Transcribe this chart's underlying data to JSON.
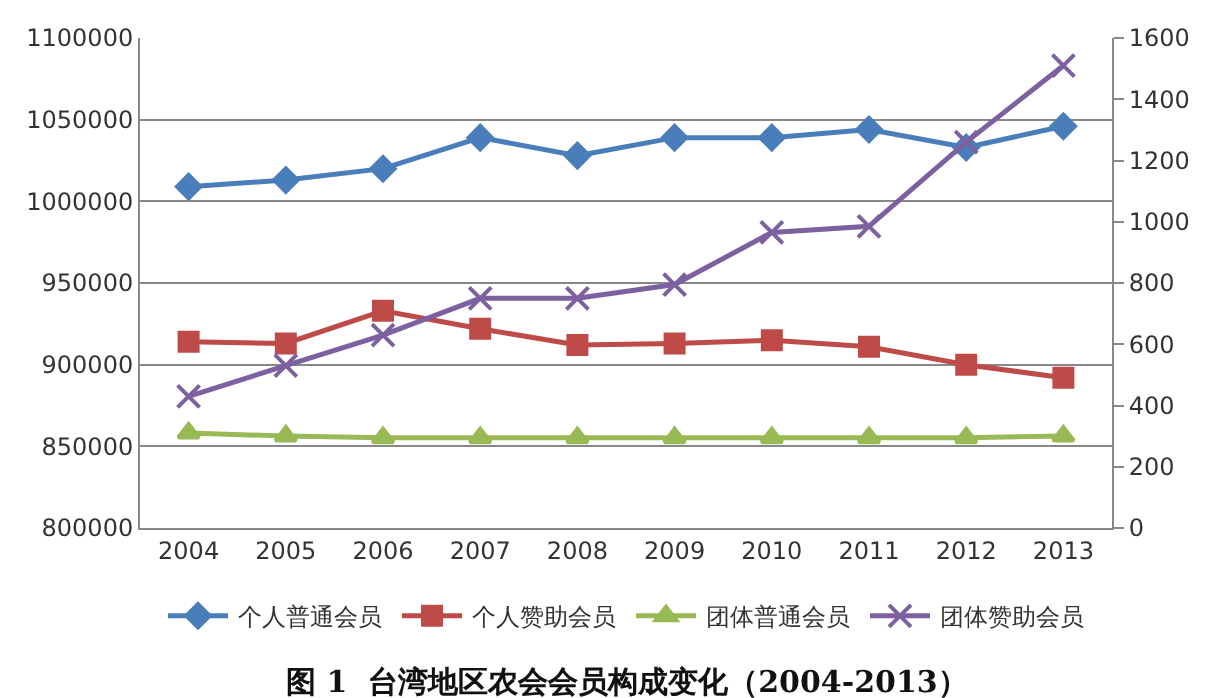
{
  "chart_data": {
    "type": "line",
    "title": "图 1  台湾地区农会会员构成变化（2004-2013）",
    "categories": [
      "2004",
      "2005",
      "2006",
      "2007",
      "2008",
      "2009",
      "2010",
      "2011",
      "2012",
      "2013"
    ],
    "series": [
      {
        "name": "个人普通会员",
        "color": "#4a7ebb",
        "marker": "diamond",
        "values": [
          1009000,
          1013000,
          1020000,
          1039000,
          1028000,
          1039000,
          1039000,
          1044000,
          1033000,
          1046000
        ]
      },
      {
        "name": "个人赞助会员",
        "color": "#be4b48",
        "marker": "square",
        "values": [
          914000,
          913000,
          933000,
          922000,
          912000,
          913000,
          915000,
          911000,
          900000,
          892000
        ]
      },
      {
        "name": "团体普通会员",
        "color": "#98b954",
        "marker": "triangle",
        "axis": "y2",
        "values": [
          310,
          300,
          295,
          295,
          295,
          295,
          295,
          295,
          295,
          300
        ]
      },
      {
        "name": "团体赞助会员",
        "color": "#7d60a0",
        "marker": "cross",
        "axis": "y2",
        "values": [
          430,
          530,
          630,
          750,
          750,
          795,
          965,
          985,
          1260,
          1510
        ]
      }
    ],
    "ylim": [
      800000,
      1100000
    ],
    "yticks": [
      800000,
      850000,
      900000,
      950000,
      1000000,
      1050000,
      1100000
    ],
    "y2lim": [
      0,
      1600
    ],
    "y2ticks": [
      0,
      200,
      400,
      600,
      800,
      1000,
      1200,
      1400,
      1600
    ],
    "grid": "y",
    "legend": "bottom",
    "line_style": "solid"
  }
}
